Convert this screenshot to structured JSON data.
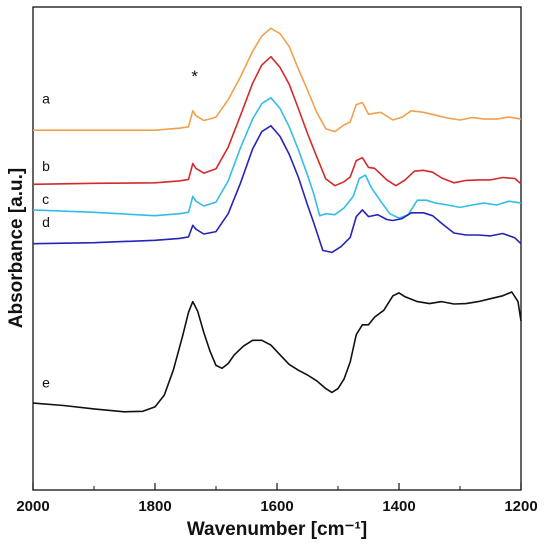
{
  "chart_data": {
    "type": "line",
    "xlabel": "Wavenumber [cm⁻¹]",
    "ylabel": "Absorbance [a.u.]",
    "x_reversed": true,
    "xlim": [
      2000,
      1200
    ],
    "ylim": [
      0,
      1
    ],
    "x_ticks": [
      2000,
      1800,
      1600,
      1400,
      1200
    ],
    "y_ticks_shown": false,
    "annotation": {
      "text": "*",
      "x": 1735
    },
    "series": [
      {
        "name": "a",
        "color": "#f0a050",
        "label_x": 1985,
        "label_y": 0.8,
        "points": [
          [
            2000,
            0.745
          ],
          [
            1900,
            0.745
          ],
          [
            1800,
            0.745
          ],
          [
            1760,
            0.749
          ],
          [
            1745,
            0.752
          ],
          [
            1738,
            0.785
          ],
          [
            1733,
            0.775
          ],
          [
            1720,
            0.765
          ],
          [
            1700,
            0.772
          ],
          [
            1680,
            0.808
          ],
          [
            1660,
            0.855
          ],
          [
            1640,
            0.908
          ],
          [
            1625,
            0.94
          ],
          [
            1610,
            0.956
          ],
          [
            1595,
            0.945
          ],
          [
            1580,
            0.918
          ],
          [
            1565,
            0.872
          ],
          [
            1550,
            0.828
          ],
          [
            1535,
            0.782
          ],
          [
            1520,
            0.748
          ],
          [
            1505,
            0.742
          ],
          [
            1490,
            0.756
          ],
          [
            1480,
            0.762
          ],
          [
            1470,
            0.798
          ],
          [
            1460,
            0.802
          ],
          [
            1450,
            0.778
          ],
          [
            1430,
            0.782
          ],
          [
            1410,
            0.766
          ],
          [
            1395,
            0.772
          ],
          [
            1380,
            0.785
          ],
          [
            1360,
            0.782
          ],
          [
            1340,
            0.776
          ],
          [
            1320,
            0.77
          ],
          [
            1300,
            0.766
          ],
          [
            1280,
            0.771
          ],
          [
            1260,
            0.768
          ],
          [
            1240,
            0.768
          ],
          [
            1220,
            0.772
          ],
          [
            1200,
            0.768
          ]
        ]
      },
      {
        "name": "b",
        "color": "#d42a2a",
        "label_x": 1985,
        "label_y": 0.66,
        "points": [
          [
            2000,
            0.633
          ],
          [
            1900,
            0.635
          ],
          [
            1800,
            0.636
          ],
          [
            1760,
            0.64
          ],
          [
            1745,
            0.643
          ],
          [
            1738,
            0.676
          ],
          [
            1733,
            0.666
          ],
          [
            1720,
            0.656
          ],
          [
            1700,
            0.665
          ],
          [
            1680,
            0.71
          ],
          [
            1660,
            0.775
          ],
          [
            1640,
            0.842
          ],
          [
            1625,
            0.88
          ],
          [
            1610,
            0.897
          ],
          [
            1595,
            0.875
          ],
          [
            1580,
            0.84
          ],
          [
            1565,
            0.79
          ],
          [
            1550,
            0.738
          ],
          [
            1535,
            0.69
          ],
          [
            1520,
            0.644
          ],
          [
            1505,
            0.63
          ],
          [
            1490,
            0.638
          ],
          [
            1480,
            0.648
          ],
          [
            1470,
            0.682
          ],
          [
            1460,
            0.688
          ],
          [
            1450,
            0.668
          ],
          [
            1440,
            0.666
          ],
          [
            1420,
            0.642
          ],
          [
            1405,
            0.63
          ],
          [
            1390,
            0.642
          ],
          [
            1375,
            0.66
          ],
          [
            1360,
            0.662
          ],
          [
            1345,
            0.658
          ],
          [
            1330,
            0.646
          ],
          [
            1310,
            0.636
          ],
          [
            1290,
            0.641
          ],
          [
            1270,
            0.642
          ],
          [
            1250,
            0.642
          ],
          [
            1230,
            0.647
          ],
          [
            1210,
            0.645
          ],
          [
            1200,
            0.634
          ]
        ]
      },
      {
        "name": "c",
        "color": "#33bde6",
        "label_x": 1985,
        "label_y": 0.592,
        "points": [
          [
            2000,
            0.58
          ],
          [
            1900,
            0.575
          ],
          [
            1800,
            0.568
          ],
          [
            1760,
            0.572
          ],
          [
            1745,
            0.575
          ],
          [
            1738,
            0.608
          ],
          [
            1733,
            0.598
          ],
          [
            1720,
            0.588
          ],
          [
            1700,
            0.596
          ],
          [
            1680,
            0.64
          ],
          [
            1660,
            0.708
          ],
          [
            1640,
            0.768
          ],
          [
            1625,
            0.8
          ],
          [
            1610,
            0.812
          ],
          [
            1595,
            0.79
          ],
          [
            1580,
            0.752
          ],
          [
            1565,
            0.705
          ],
          [
            1550,
            0.652
          ],
          [
            1540,
            0.614
          ],
          [
            1530,
            0.568
          ],
          [
            1520,
            0.572
          ],
          [
            1505,
            0.57
          ],
          [
            1490,
            0.584
          ],
          [
            1475,
            0.608
          ],
          [
            1465,
            0.645
          ],
          [
            1455,
            0.652
          ],
          [
            1445,
            0.625
          ],
          [
            1430,
            0.598
          ],
          [
            1415,
            0.572
          ],
          [
            1400,
            0.563
          ],
          [
            1385,
            0.57
          ],
          [
            1370,
            0.6
          ],
          [
            1355,
            0.6
          ],
          [
            1340,
            0.594
          ],
          [
            1320,
            0.59
          ],
          [
            1300,
            0.585
          ],
          [
            1280,
            0.59
          ],
          [
            1260,
            0.594
          ],
          [
            1240,
            0.59
          ],
          [
            1220,
            0.598
          ],
          [
            1200,
            0.594
          ]
        ]
      },
      {
        "name": "d",
        "color": "#2525b8",
        "label_x": 1985,
        "label_y": 0.545,
        "points": [
          [
            2000,
            0.51
          ],
          [
            1900,
            0.512
          ],
          [
            1800,
            0.517
          ],
          [
            1760,
            0.521
          ],
          [
            1745,
            0.524
          ],
          [
            1738,
            0.548
          ],
          [
            1733,
            0.54
          ],
          [
            1720,
            0.53
          ],
          [
            1700,
            0.535
          ],
          [
            1680,
            0.572
          ],
          [
            1660,
            0.635
          ],
          [
            1640,
            0.706
          ],
          [
            1625,
            0.742
          ],
          [
            1610,
            0.754
          ],
          [
            1595,
            0.732
          ],
          [
            1580,
            0.695
          ],
          [
            1565,
            0.648
          ],
          [
            1550,
            0.59
          ],
          [
            1540,
            0.554
          ],
          [
            1525,
            0.496
          ],
          [
            1510,
            0.492
          ],
          [
            1495,
            0.504
          ],
          [
            1480,
            0.523
          ],
          [
            1470,
            0.566
          ],
          [
            1460,
            0.58
          ],
          [
            1450,
            0.566
          ],
          [
            1435,
            0.57
          ],
          [
            1420,
            0.56
          ],
          [
            1410,
            0.558
          ],
          [
            1395,
            0.562
          ],
          [
            1380,
            0.574
          ],
          [
            1360,
            0.574
          ],
          [
            1345,
            0.568
          ],
          [
            1330,
            0.552
          ],
          [
            1310,
            0.532
          ],
          [
            1290,
            0.528
          ],
          [
            1270,
            0.528
          ],
          [
            1250,
            0.526
          ],
          [
            1230,
            0.531
          ],
          [
            1210,
            0.522
          ],
          [
            1200,
            0.51
          ]
        ]
      },
      {
        "name": "e",
        "color": "#111111",
        "label_x": 1985,
        "label_y": 0.212,
        "points": [
          [
            2000,
            0.18
          ],
          [
            1950,
            0.175
          ],
          [
            1900,
            0.168
          ],
          [
            1850,
            0.162
          ],
          [
            1820,
            0.163
          ],
          [
            1800,
            0.172
          ],
          [
            1785,
            0.196
          ],
          [
            1770,
            0.248
          ],
          [
            1755,
            0.318
          ],
          [
            1745,
            0.368
          ],
          [
            1738,
            0.39
          ],
          [
            1730,
            0.37
          ],
          [
            1720,
            0.326
          ],
          [
            1710,
            0.288
          ],
          [
            1700,
            0.258
          ],
          [
            1690,
            0.252
          ],
          [
            1680,
            0.262
          ],
          [
            1670,
            0.28
          ],
          [
            1655,
            0.298
          ],
          [
            1640,
            0.31
          ],
          [
            1625,
            0.31
          ],
          [
            1610,
            0.3
          ],
          [
            1595,
            0.28
          ],
          [
            1580,
            0.26
          ],
          [
            1565,
            0.248
          ],
          [
            1550,
            0.238
          ],
          [
            1535,
            0.226
          ],
          [
            1520,
            0.21
          ],
          [
            1510,
            0.202
          ],
          [
            1500,
            0.21
          ],
          [
            1490,
            0.23
          ],
          [
            1480,
            0.265
          ],
          [
            1470,
            0.322
          ],
          [
            1460,
            0.342
          ],
          [
            1450,
            0.342
          ],
          [
            1440,
            0.358
          ],
          [
            1425,
            0.372
          ],
          [
            1410,
            0.402
          ],
          [
            1400,
            0.408
          ],
          [
            1390,
            0.4
          ],
          [
            1370,
            0.39
          ],
          [
            1350,
            0.386
          ],
          [
            1330,
            0.39
          ],
          [
            1310,
            0.385
          ],
          [
            1290,
            0.386
          ],
          [
            1270,
            0.39
          ],
          [
            1250,
            0.396
          ],
          [
            1230,
            0.402
          ],
          [
            1215,
            0.41
          ],
          [
            1205,
            0.39
          ],
          [
            1200,
            0.35
          ]
        ]
      }
    ]
  }
}
